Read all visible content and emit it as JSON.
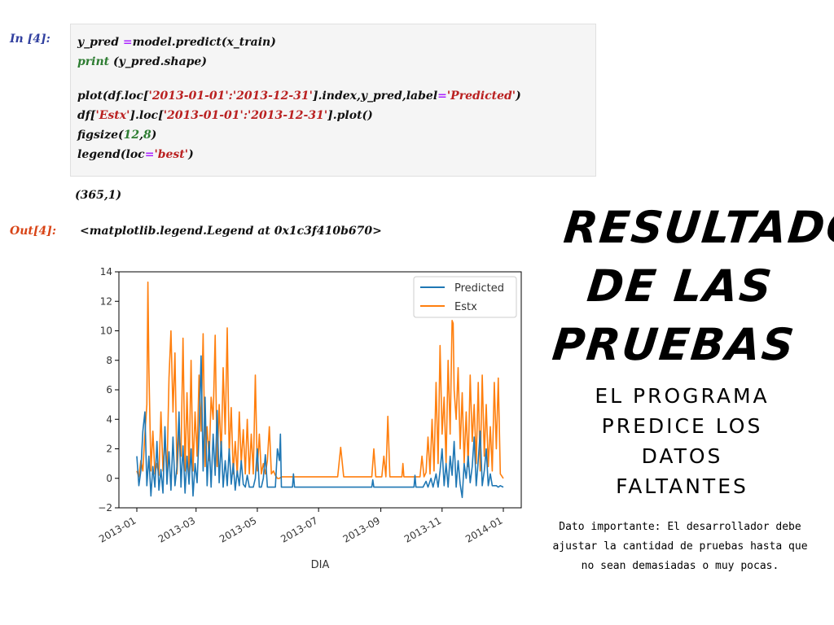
{
  "notebook": {
    "in_prompt": "In [4]:",
    "out_prompt": "Out[4]:",
    "code": {
      "line1": [
        "y_pred ",
        "=",
        "model.predict(x_train)"
      ],
      "line2": [
        "print",
        " (y_pred.shape)"
      ],
      "line3": [
        "plot(df.loc[",
        "'2013-01-01':'2013-12-31'",
        "].index,y_pred,label",
        "=",
        "'Predicted'",
        ")"
      ],
      "line4": [
        "df[",
        "'Estx'",
        "].loc[",
        "'2013-01-01':'2013-12-31'",
        "].plot()"
      ],
      "line5": [
        "figsize(",
        "12",
        ",",
        "8",
        ")"
      ],
      "line6": [
        "legend(loc",
        "=",
        "'best'",
        ")"
      ]
    },
    "stdout": "(365,1)",
    "out_repr": "<matplotlib.legend.Legend at 0x1c3f410b670>"
  },
  "slide": {
    "title_lines": [
      "RESULTADO",
      "DE LAS",
      "PRUEBAS"
    ],
    "subtitle_lines": [
      "EL PROGRAMA",
      "PREDICE LOS",
      "DATOS",
      "FALTANTES"
    ],
    "note_lines": [
      "Dato importante: El desarrollador debe",
      "ajustar la cantidad de pruebas hasta que",
      "no sean demasiadas o muy pocas."
    ]
  },
  "chart_data": {
    "type": "line",
    "xlabel": "DIA",
    "ylabel": "",
    "ylim": [
      -2,
      14
    ],
    "yticks": [
      -2,
      0,
      2,
      4,
      6,
      8,
      10,
      12,
      14
    ],
    "xlim": [
      0,
      365
    ],
    "xticks": [
      {
        "label": "2013-01",
        "day": 0
      },
      {
        "label": "2013-03",
        "day": 59
      },
      {
        "label": "2013-05",
        "day": 120
      },
      {
        "label": "2013-07",
        "day": 181
      },
      {
        "label": "2013-09",
        "day": 243
      },
      {
        "label": "2013-11",
        "day": 304
      },
      {
        "label": "2014-01",
        "day": 365
      }
    ],
    "legend_placement": "upper right",
    "series": [
      {
        "name": "Predicted",
        "color": "#1f77b4",
        "points": [
          [
            0,
            1.5
          ],
          [
            2,
            -0.5
          ],
          [
            4,
            0.5
          ],
          [
            6,
            3.2
          ],
          [
            8,
            4.5
          ],
          [
            10,
            -0.5
          ],
          [
            12,
            1.5
          ],
          [
            14,
            -1.2
          ],
          [
            16,
            0.8
          ],
          [
            18,
            -0.6
          ],
          [
            20,
            2.5
          ],
          [
            22,
            -0.8
          ],
          [
            24,
            0.6
          ],
          [
            26,
            -1.0
          ],
          [
            28,
            3.5
          ],
          [
            30,
            -0.4
          ],
          [
            32,
            1.8
          ],
          [
            34,
            -0.8
          ],
          [
            36,
            2.8
          ],
          [
            38,
            -0.5
          ],
          [
            40,
            0.8
          ],
          [
            42,
            4.5
          ],
          [
            44,
            -0.6
          ],
          [
            46,
            2.2
          ],
          [
            48,
            -1.0
          ],
          [
            50,
            1.5
          ],
          [
            52,
            -0.4
          ],
          [
            54,
            2.0
          ],
          [
            56,
            -1.2
          ],
          [
            58,
            1.0
          ],
          [
            60,
            -0.3
          ],
          [
            62,
            3.0
          ],
          [
            64,
            8.3
          ],
          [
            66,
            0.5
          ],
          [
            68,
            5.5
          ],
          [
            70,
            -0.5
          ],
          [
            72,
            2.5
          ],
          [
            74,
            -0.6
          ],
          [
            76,
            3.0
          ],
          [
            78,
            0.2
          ],
          [
            80,
            4.6
          ],
          [
            82,
            -0.3
          ],
          [
            84,
            2.5
          ],
          [
            86,
            -0.6
          ],
          [
            88,
            1.2
          ],
          [
            90,
            -0.5
          ],
          [
            92,
            2.0
          ],
          [
            94,
            -0.4
          ],
          [
            96,
            1.0
          ],
          [
            98,
            -0.8
          ],
          [
            100,
            0.5
          ],
          [
            102,
            -0.5
          ],
          [
            104,
            1.2
          ],
          [
            106,
            -0.4
          ],
          [
            108,
            -0.6
          ],
          [
            110,
            0.2
          ],
          [
            112,
            -0.6
          ],
          [
            114,
            -0.6
          ],
          [
            116,
            -0.6
          ],
          [
            118,
            0.0
          ],
          [
            120,
            2.0
          ],
          [
            122,
            -0.6
          ],
          [
            124,
            -0.6
          ],
          [
            126,
            0.0
          ],
          [
            128,
            1.6
          ],
          [
            130,
            -0.6
          ],
          [
            132,
            -0.6
          ],
          [
            134,
            -0.6
          ],
          [
            136,
            -0.6
          ],
          [
            138,
            -0.6
          ],
          [
            140,
            2.0
          ],
          [
            142,
            1.2
          ],
          [
            143,
            3.0
          ],
          [
            144,
            -0.6
          ],
          [
            150,
            -0.6
          ],
          [
            155,
            -0.6
          ],
          [
            156,
            0.3
          ],
          [
            157,
            -0.6
          ],
          [
            170,
            -0.6
          ],
          [
            185,
            -0.6
          ],
          [
            200,
            -0.6
          ],
          [
            220,
            -0.6
          ],
          [
            234,
            -0.6
          ],
          [
            235,
            -0.1
          ],
          [
            236,
            -0.6
          ],
          [
            260,
            -0.6
          ],
          [
            276,
            -0.6
          ],
          [
            277,
            0.2
          ],
          [
            278,
            -0.6
          ],
          [
            285,
            -0.6
          ],
          [
            288,
            -0.2
          ],
          [
            290,
            -0.6
          ],
          [
            293,
            0.0
          ],
          [
            295,
            -0.6
          ],
          [
            298,
            0.3
          ],
          [
            300,
            -0.6
          ],
          [
            302,
            0.5
          ],
          [
            304,
            2.0
          ],
          [
            306,
            -0.5
          ],
          [
            308,
            1.0
          ],
          [
            310,
            -0.6
          ],
          [
            312,
            1.5
          ],
          [
            314,
            0.2
          ],
          [
            316,
            2.5
          ],
          [
            318,
            -0.6
          ],
          [
            320,
            1.2
          ],
          [
            322,
            -0.4
          ],
          [
            324,
            -1.3
          ],
          [
            326,
            1.0
          ],
          [
            328,
            0.0
          ],
          [
            330,
            1.5
          ],
          [
            332,
            -0.3
          ],
          [
            334,
            0.8
          ],
          [
            336,
            2.8
          ],
          [
            338,
            -0.5
          ],
          [
            340,
            1.2
          ],
          [
            342,
            3.2
          ],
          [
            344,
            -0.5
          ],
          [
            346,
            0.5
          ],
          [
            348,
            2.0
          ],
          [
            350,
            -0.5
          ],
          [
            352,
            0.3
          ],
          [
            354,
            -0.5
          ],
          [
            356,
            -0.5
          ],
          [
            358,
            -0.5
          ],
          [
            360,
            -0.6
          ],
          [
            362,
            -0.5
          ],
          [
            365,
            -0.6
          ]
        ]
      },
      {
        "name": "Estx",
        "color": "#ff7f0e",
        "points": [
          [
            0,
            0.5
          ],
          [
            2,
            0.1
          ],
          [
            4,
            1.2
          ],
          [
            6,
            0.5
          ],
          [
            8,
            3.0
          ],
          [
            10,
            5.0
          ],
          [
            11,
            13.3
          ],
          [
            12,
            7.5
          ],
          [
            14,
            0.5
          ],
          [
            16,
            3.2
          ],
          [
            18,
            0.3
          ],
          [
            20,
            1.0
          ],
          [
            22,
            0.2
          ],
          [
            24,
            4.5
          ],
          [
            26,
            0.5
          ],
          [
            28,
            2.8
          ],
          [
            30,
            0.3
          ],
          [
            32,
            6.8
          ],
          [
            34,
            10.0
          ],
          [
            36,
            4.5
          ],
          [
            38,
            8.5
          ],
          [
            40,
            0.3
          ],
          [
            42,
            3.0
          ],
          [
            44,
            1.5
          ],
          [
            46,
            9.5
          ],
          [
            48,
            0.5
          ],
          [
            50,
            5.8
          ],
          [
            52,
            0.3
          ],
          [
            54,
            8.0
          ],
          [
            56,
            0.5
          ],
          [
            58,
            4.5
          ],
          [
            60,
            1.5
          ],
          [
            62,
            7.0
          ],
          [
            64,
            3.2
          ],
          [
            66,
            9.8
          ],
          [
            68,
            0.8
          ],
          [
            70,
            3.5
          ],
          [
            72,
            1.2
          ],
          [
            74,
            5.5
          ],
          [
            76,
            4.0
          ],
          [
            78,
            9.7
          ],
          [
            80,
            0.8
          ],
          [
            82,
            5.0
          ],
          [
            84,
            1.5
          ],
          [
            86,
            7.5
          ],
          [
            88,
            3.0
          ],
          [
            90,
            10.2
          ],
          [
            92,
            1.5
          ],
          [
            94,
            4.8
          ],
          [
            96,
            0.3
          ],
          [
            98,
            2.5
          ],
          [
            100,
            0.2
          ],
          [
            102,
            4.5
          ],
          [
            104,
            1.0
          ],
          [
            106,
            3.3
          ],
          [
            108,
            0.3
          ],
          [
            110,
            4.0
          ],
          [
            112,
            0.3
          ],
          [
            114,
            3.0
          ],
          [
            116,
            0.3
          ],
          [
            118,
            7.0
          ],
          [
            120,
            0.5
          ],
          [
            122,
            3.0
          ],
          [
            124,
            0.3
          ],
          [
            126,
            1.0
          ],
          [
            128,
            0.3
          ],
          [
            130,
            1.2
          ],
          [
            132,
            3.5
          ],
          [
            134,
            0.3
          ],
          [
            136,
            0.5
          ],
          [
            138,
            0.2
          ],
          [
            140,
            0.0
          ],
          [
            142,
            0.0
          ],
          [
            144,
            0.1
          ],
          [
            150,
            0.1
          ],
          [
            160,
            0.1
          ],
          [
            180,
            0.1
          ],
          [
            200,
            0.1
          ],
          [
            203,
            2.1
          ],
          [
            206,
            0.1
          ],
          [
            234,
            0.1
          ],
          [
            236,
            2.0
          ],
          [
            238,
            0.1
          ],
          [
            244,
            0.1
          ],
          [
            246,
            1.5
          ],
          [
            248,
            0.1
          ],
          [
            250,
            4.2
          ],
          [
            252,
            0.1
          ],
          [
            260,
            0.1
          ],
          [
            264,
            0.1
          ],
          [
            265,
            1.0
          ],
          [
            266,
            0.1
          ],
          [
            282,
            0.1
          ],
          [
            284,
            1.5
          ],
          [
            286,
            0.1
          ],
          [
            288,
            0.4
          ],
          [
            290,
            2.8
          ],
          [
            292,
            0.3
          ],
          [
            294,
            4.0
          ],
          [
            296,
            0.5
          ],
          [
            298,
            6.5
          ],
          [
            300,
            1.0
          ],
          [
            302,
            9.0
          ],
          [
            304,
            3.0
          ],
          [
            306,
            5.5
          ],
          [
            308,
            1.0
          ],
          [
            310,
            8.0
          ],
          [
            312,
            3.0
          ],
          [
            314,
            10.7
          ],
          [
            315,
            10.5
          ],
          [
            316,
            6.0
          ],
          [
            318,
            4.0
          ],
          [
            320,
            7.5
          ],
          [
            322,
            2.0
          ],
          [
            324,
            5.8
          ],
          [
            326,
            1.0
          ],
          [
            328,
            4.5
          ],
          [
            330,
            0.8
          ],
          [
            332,
            7.0
          ],
          [
            334,
            2.5
          ],
          [
            336,
            5.0
          ],
          [
            338,
            1.0
          ],
          [
            340,
            6.5
          ],
          [
            342,
            0.5
          ],
          [
            344,
            7.0
          ],
          [
            346,
            1.5
          ],
          [
            348,
            5.0
          ],
          [
            350,
            0.8
          ],
          [
            352,
            3.5
          ],
          [
            354,
            0.5
          ],
          [
            356,
            6.5
          ],
          [
            358,
            2.0
          ],
          [
            360,
            6.8
          ],
          [
            362,
            0.3
          ],
          [
            365,
            0.0
          ]
        ]
      }
    ]
  }
}
